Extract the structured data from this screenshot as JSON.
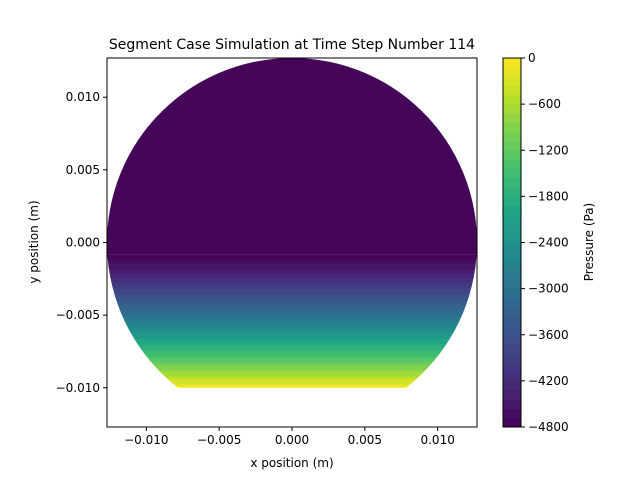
{
  "chart_data": {
    "type": "heatmap",
    "title": "Segment Case Simulation at Time Step Number 114",
    "xlabel": "x position (m)",
    "ylabel": "y position (m)",
    "xlim": [
      -0.0127,
      0.0127
    ],
    "ylim": [
      -0.0127,
      0.0127
    ],
    "x_ticks": [
      {
        "value": -0.01,
        "label": "−0.010"
      },
      {
        "value": -0.005,
        "label": "−0.005"
      },
      {
        "value": 0.0,
        "label": "0.000"
      },
      {
        "value": 0.005,
        "label": "0.005"
      },
      {
        "value": 0.01,
        "label": "0.010"
      }
    ],
    "y_ticks": [
      {
        "value": 0.01,
        "label": "0.010"
      },
      {
        "value": 0.005,
        "label": "0.005"
      },
      {
        "value": 0.0,
        "label": "0.000"
      },
      {
        "value": -0.005,
        "label": "−0.005"
      },
      {
        "value": -0.01,
        "label": "−0.010"
      }
    ],
    "domain": {
      "shape": "circular segment",
      "circle_center": [
        0.0,
        0.0
      ],
      "radius": 0.0127,
      "chord_y": -0.01
    },
    "field": {
      "name": "Pressure",
      "uniform_region_above_y": -0.0008,
      "uniform_value": -4800,
      "profile_y": [
        -0.0008,
        -0.002,
        -0.004,
        -0.006,
        -0.008,
        -0.009,
        -0.01
      ],
      "profile_value": [
        -4800,
        -4400,
        -3500,
        -2500,
        -1300,
        -700,
        -50
      ]
    },
    "colorbar": {
      "label": "Pressure (Pa)",
      "vmin": -4800,
      "vmax": 0,
      "colormap": "viridis",
      "levels": 40,
      "ticks": [
        {
          "value": 0,
          "label": "0"
        },
        {
          "value": -600,
          "label": "−600"
        },
        {
          "value": -1200,
          "label": "−1200"
        },
        {
          "value": -1800,
          "label": "−1800"
        },
        {
          "value": -2400,
          "label": "−2400"
        },
        {
          "value": -3000,
          "label": "−3000"
        },
        {
          "value": -3600,
          "label": "−3600"
        },
        {
          "value": -4200,
          "label": "−4200"
        },
        {
          "value": -4800,
          "label": "−4800"
        }
      ]
    }
  }
}
